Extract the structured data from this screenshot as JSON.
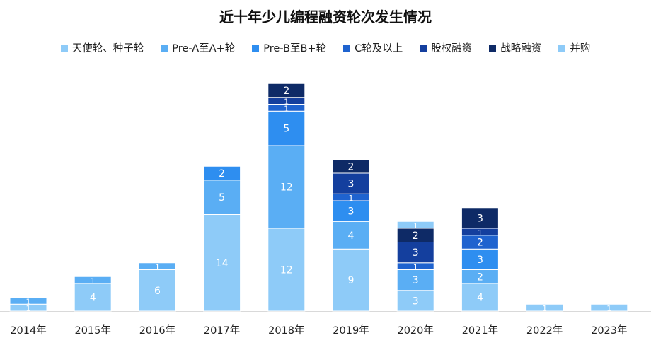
{
  "title": "近十年少儿编程融资轮次发生情况",
  "chart_data": {
    "type": "bar",
    "stacked": true,
    "title": "近十年少儿编程融资轮次发生情况",
    "categories": [
      "2014年",
      "2015年",
      "2016年",
      "2017年",
      "2018年",
      "2019年",
      "2020年",
      "2021年",
      "2022年",
      "2023年"
    ],
    "series": [
      {
        "name": "天使轮、种子轮",
        "color": "#8ecbf8",
        "values": [
          1,
          4,
          6,
          14,
          12,
          9,
          3,
          4,
          1,
          0
        ]
      },
      {
        "name": "Pre-A至A+轮",
        "color": "#5aaef4",
        "values": [
          1,
          1,
          1,
          5,
          12,
          4,
          3,
          2,
          0,
          0
        ]
      },
      {
        "name": "Pre-B至B+轮",
        "color": "#2e8ef0",
        "values": [
          0,
          0,
          0,
          2,
          5,
          3,
          0,
          3,
          0,
          0
        ]
      },
      {
        "name": "C轮及以上",
        "color": "#1f63cf",
        "values": [
          0,
          0,
          0,
          0,
          1,
          1,
          1,
          2,
          0,
          0
        ]
      },
      {
        "name": "股权融资",
        "color": "#143f9e",
        "values": [
          0,
          0,
          0,
          0,
          1,
          3,
          3,
          1,
          0,
          0
        ]
      },
      {
        "name": "战略融资",
        "color": "#0e2a66",
        "values": [
          0,
          0,
          0,
          0,
          2,
          2,
          2,
          3,
          0,
          0
        ]
      },
      {
        "name": "并购",
        "color": "#8ecbf8",
        "values": [
          0,
          0,
          0,
          0,
          0,
          0,
          1,
          0,
          0,
          1
        ]
      }
    ],
    "ylim": [
      0,
      32
    ],
    "grid": false,
    "legend": "top"
  }
}
